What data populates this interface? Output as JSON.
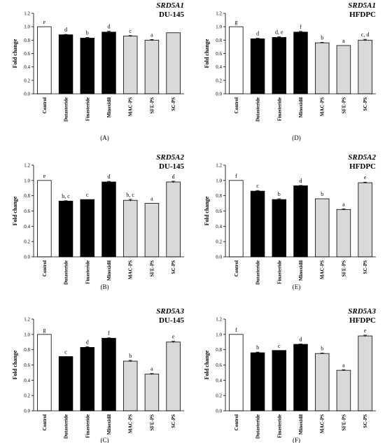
{
  "chart_data": [
    {
      "type": "bar",
      "panel": "(A)",
      "gene": "SRD5A1",
      "cell": "DU-145",
      "ylabel": "Fold change",
      "ylim": [
        0,
        1.2
      ],
      "categories": [
        "Control",
        "Dutasteride",
        "Finasteride",
        "Minoxidil",
        "MAC-PS",
        "SFE-PS",
        "SC-PS"
      ],
      "values": [
        1.0,
        0.88,
        0.83,
        0.92,
        0.86,
        0.8,
        0.91
      ],
      "errors": [
        0,
        0.005,
        0.01,
        0.012,
        0.008,
        0.01,
        0
      ],
      "letters": [
        "e",
        "d",
        "b",
        "d",
        "c",
        "a",
        ""
      ],
      "groups": [
        "control",
        "drug",
        "drug",
        "drug",
        "extract",
        "extract",
        "extract"
      ]
    },
    {
      "type": "bar",
      "panel": "(D)",
      "gene": "SRD5A1",
      "cell": "HFDPC",
      "ylabel": "Fold change",
      "ylim": [
        0,
        1.2
      ],
      "categories": [
        "Control",
        "Dutasteride",
        "Finasteride",
        "Minoxidil",
        "MAC-PS",
        "SFE-PS",
        "SC-PS"
      ],
      "values": [
        1.0,
        0.82,
        0.84,
        0.92,
        0.76,
        0.72,
        0.8
      ],
      "errors": [
        0,
        0.008,
        0.01,
        0.01,
        0.006,
        0,
        0.012
      ],
      "letters": [
        "g",
        "d",
        "d, e",
        "f",
        "b",
        "a",
        "c, d"
      ],
      "groups": [
        "control",
        "drug",
        "drug",
        "drug",
        "extract",
        "extract",
        "extract"
      ]
    },
    {
      "type": "bar",
      "panel": "(B)",
      "gene": "SRD5A2",
      "cell": "DU-145",
      "ylabel": "Fold change",
      "ylim": [
        0,
        1.2
      ],
      "categories": [
        "Control",
        "Dutasteride",
        "Finasteride",
        "Minoxidil",
        "MAC-PS",
        "SFE-PS",
        "SC-PS"
      ],
      "values": [
        1.0,
        0.73,
        0.75,
        0.98,
        0.74,
        0.7,
        0.98
      ],
      "errors": [
        0,
        0.005,
        0,
        0.008,
        0.012,
        0,
        0.01
      ],
      "letters": [
        "e",
        "b, c",
        "c",
        "d",
        "b, c",
        "a",
        "d"
      ],
      "groups": [
        "control",
        "drug",
        "drug",
        "drug",
        "extract",
        "extract",
        "extract"
      ]
    },
    {
      "type": "bar",
      "panel": "(E)",
      "gene": "SRD5A2",
      "cell": "HFDPC",
      "ylabel": "Fold change",
      "ylim": [
        0,
        1.2
      ],
      "categories": [
        "Control",
        "Dutasteride",
        "Finasteride",
        "Minoxidil",
        "MAC-PS",
        "SFE-PS",
        "SC-PS"
      ],
      "values": [
        1.0,
        0.86,
        0.75,
        0.93,
        0.76,
        0.62,
        0.97
      ],
      "errors": [
        0,
        0.008,
        0.01,
        0.005,
        0,
        0.008,
        0.008
      ],
      "letters": [
        "f",
        "c",
        "b",
        "d",
        "b",
        "a",
        "e"
      ],
      "groups": [
        "control",
        "drug",
        "drug",
        "drug",
        "extract",
        "extract",
        "extract"
      ]
    },
    {
      "type": "bar",
      "panel": "(C)",
      "gene": "SRD5A3",
      "cell": "DU-145",
      "ylabel": "Fold change",
      "ylim": [
        0,
        1.2
      ],
      "categories": [
        "Control",
        "Dutasteride",
        "Finasteride",
        "Minoxidil",
        "MAC-PS",
        "SFE-PS",
        "SC-PS"
      ],
      "values": [
        1.0,
        0.71,
        0.83,
        0.95,
        0.65,
        0.48,
        0.9
      ],
      "errors": [
        0,
        0,
        0.008,
        0.005,
        0.01,
        0.008,
        0.01
      ],
      "letters": [
        "g",
        "c",
        "d",
        "f",
        "b",
        "a",
        "e"
      ],
      "groups": [
        "control",
        "drug",
        "drug",
        "drug",
        "extract",
        "extract",
        "extract"
      ]
    },
    {
      "type": "bar",
      "panel": "(F)",
      "gene": "SRD5A3",
      "cell": "HFDPC",
      "ylabel": "Fold change",
      "ylim": [
        0,
        1.2
      ],
      "categories": [
        "Control",
        "Dutasteride",
        "Finasteride",
        "Minoxidil",
        "MAC-PS",
        "SFE-PS",
        "SC-PS"
      ],
      "values": [
        1.0,
        0.76,
        0.79,
        0.87,
        0.75,
        0.53,
        0.98
      ],
      "errors": [
        0,
        0.008,
        0,
        0.005,
        0.006,
        0.008,
        0.01
      ],
      "letters": [
        "f",
        "b",
        "c",
        "d",
        "b",
        "a",
        "e"
      ],
      "groups": [
        "control",
        "drug",
        "drug",
        "drug",
        "extract",
        "extract",
        "extract"
      ]
    }
  ],
  "yticks": [
    "0.0",
    "0.2",
    "0.4",
    "0.6",
    "0.8",
    "1.0",
    "1.2"
  ],
  "colors": {
    "control": "#ffffff",
    "drug": "#000000",
    "extract": "#d9d9d9",
    "axis": "#000000"
  }
}
